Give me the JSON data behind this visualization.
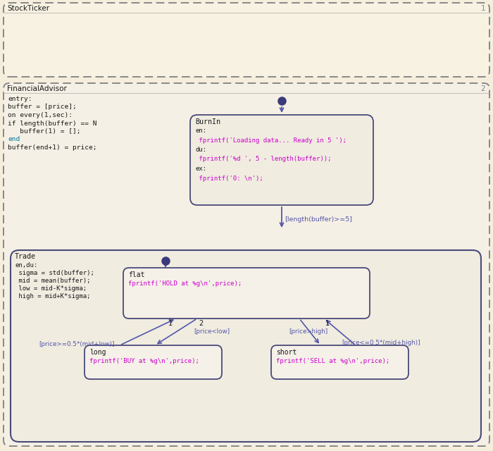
{
  "bg_color": "#f5eedc",
  "dashed_border": "#888888",
  "solid_border": "#4a4a7a",
  "state_fill": "#f0ece0",
  "inner_fill": "#f5f0e5",
  "arrow_color": "#5555aa",
  "text_black": "#1a1a1a",
  "text_magenta": "#cc00cc",
  "text_blue_entry": "#0000cc",
  "text_cyan": "#007799",
  "text_label": "#5555aa",
  "text_gray": "#888888",
  "stockticker_label": "StockTicker",
  "stockticker_num": "1",
  "fa_label": "FinancialAdvisor",
  "fa_num": "2",
  "fa_lines": [
    [
      "entry:",
      "black"
    ],
    [
      "buffer = [price];",
      "black"
    ],
    [
      "on every(1,sec):",
      "black"
    ],
    [
      "if length(buffer) == N",
      "black"
    ],
    [
      "   buffer(1) = [];",
      "black"
    ],
    [
      "end",
      "cyan"
    ],
    [
      "buffer(end+1) = price;",
      "black"
    ]
  ],
  "burnin_title": "BurnIn",
  "burnin_lines": [
    [
      "en:",
      "black"
    ],
    [
      " fprintf('Loading data... Ready in 5 ');",
      "magenta"
    ],
    [
      "du:",
      "black"
    ],
    [
      " fprintf('%d ', 5 - length(buffer));",
      "magenta"
    ],
    [
      "ex:",
      "black"
    ],
    [
      " fprintf('0: \\n');",
      "magenta"
    ]
  ],
  "trade_label": "Trade",
  "trade_lines": [
    [
      "en,du:",
      "black"
    ],
    [
      " sigma = std(buffer);",
      "black"
    ],
    [
      " mid = mean(buffer);",
      "black"
    ],
    [
      " low = mid-K*sigma;",
      "black"
    ],
    [
      " high = mid+K*sigma;",
      "black"
    ]
  ],
  "flat_title": "flat",
  "flat_code": "fprintf('HOLD at %g\\n',price);",
  "long_title": "long",
  "long_code": "fprintf('BUY at %g\\n',price);",
  "short_title": "short",
  "short_code": "fprintf('SELL at %g\\n',price);",
  "cond_burnin_trade": "[length(buffer)>=5]",
  "cond_long_flat": "[price>=0.5*(mid+low)]",
  "cond_flat_long": "[price<low]",
  "cond_flat_short": "[price>high]",
  "cond_short_flat": "[price<=0.5*(mid+high)]"
}
